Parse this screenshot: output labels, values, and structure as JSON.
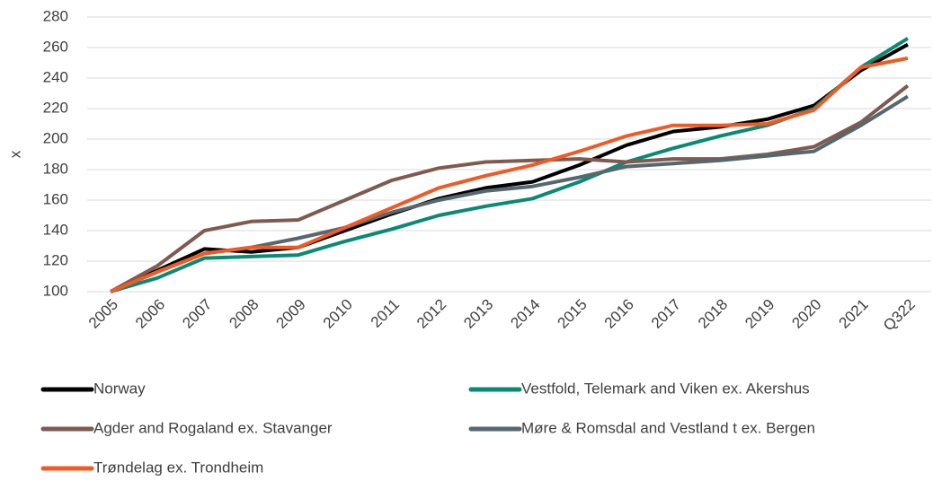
{
  "chart_data": {
    "type": "line",
    "ylabel": "x",
    "categories": [
      "2005",
      "2006",
      "2007",
      "2008",
      "2009",
      "2010",
      "2011",
      "2012",
      "2013",
      "2014",
      "2015",
      "2016",
      "2017",
      "2018",
      "2019",
      "2020",
      "2021",
      "Q322"
    ],
    "series": [
      {
        "name": "Norway",
        "color": "#000000",
        "values": [
          100,
          114,
          128,
          126,
          129,
          140,
          151,
          161,
          168,
          172,
          183,
          196,
          205,
          208,
          213,
          222,
          245,
          262
        ]
      },
      {
        "name": "Vestfold, Telemark and Viken ex. Akershus",
        "color": "#0a8a74",
        "values": [
          100,
          109,
          122,
          123,
          124,
          133,
          141,
          150,
          156,
          161,
          172,
          185,
          194,
          202,
          209,
          220,
          247,
          266
        ]
      },
      {
        "name": "Agder and  Rogaland ex. Stavanger",
        "color": "#7f5b4f",
        "values": [
          100,
          117,
          140,
          146,
          147,
          160,
          173,
          181,
          185,
          186,
          187,
          185,
          187,
          187,
          190,
          195,
          211,
          235
        ]
      },
      {
        "name": "Møre & Romsdal and Vestland t ex. Bergen",
        "color": "#55676f",
        "values": [
          100,
          113,
          125,
          129,
          135,
          142,
          152,
          160,
          166,
          169,
          175,
          182,
          184,
          186,
          189,
          192,
          209,
          228
        ]
      },
      {
        "name": "Trøndelag ex. Trondheim",
        "color": "#f15a24",
        "values": [
          100,
          113,
          125,
          129,
          129,
          142,
          155,
          168,
          176,
          183,
          192,
          202,
          209,
          209,
          210,
          219,
          247,
          253
        ]
      }
    ],
    "ylim": [
      100,
      280
    ],
    "yticks": [
      100,
      120,
      140,
      160,
      180,
      200,
      220,
      240,
      260,
      280
    ],
    "grid": true
  }
}
